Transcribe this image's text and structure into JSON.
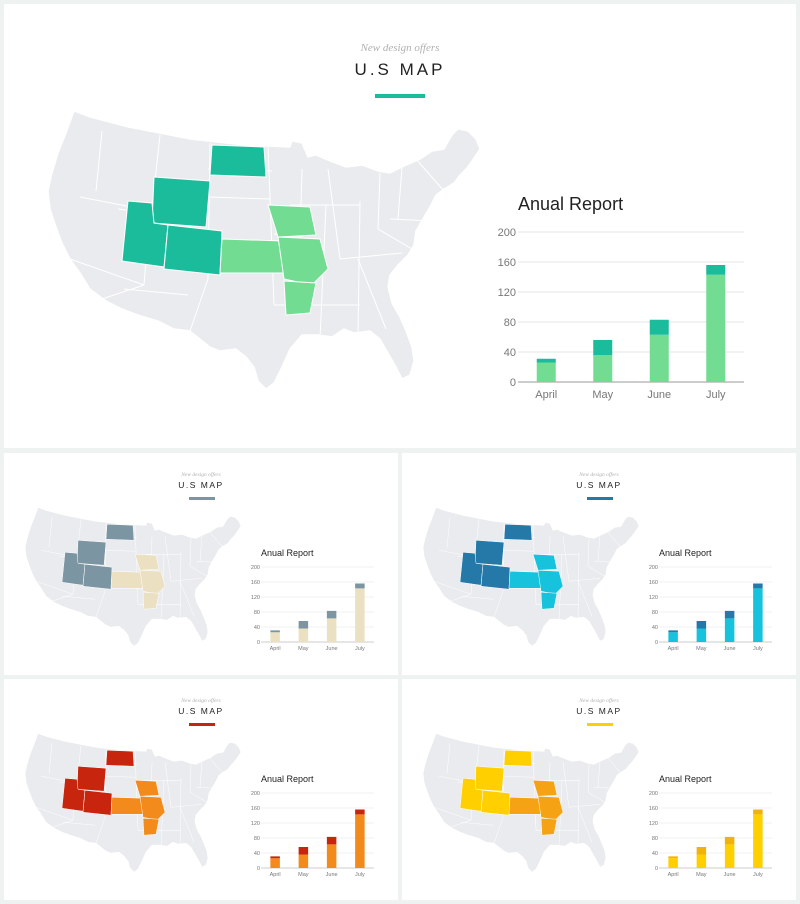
{
  "subtitle": "New design offers",
  "title": "U.S MAP",
  "chart_data": {
    "type": "bar",
    "title": "Anual Report",
    "categories": [
      "April",
      "May",
      "June",
      "July"
    ],
    "series": [
      {
        "values": [
          26,
          36,
          63,
          143
        ]
      },
      {
        "values": [
          5,
          20,
          20,
          13
        ]
      }
    ],
    "stacked": true,
    "ylim": [
      0,
      200
    ],
    "yticks": [
      0,
      40,
      80,
      120,
      160,
      200
    ],
    "grid": true
  },
  "variants": [
    {
      "id": "teal",
      "accent": "#1bbc9c",
      "series_colors": [
        "#72dd92",
        "#1bbc9c"
      ],
      "map_colors": {
        "primary": "#1bbc9c",
        "secondary": "#72dd92"
      }
    },
    {
      "id": "slate",
      "accent": "#7b95a3",
      "series_colors": [
        "#ebe0c2",
        "#7b95a3"
      ],
      "map_colors": {
        "primary": "#7b95a3",
        "secondary": "#ebe0c2"
      }
    },
    {
      "id": "blue",
      "accent": "#2479a8",
      "series_colors": [
        "#17c2dc",
        "#2479a8"
      ],
      "map_colors": {
        "primary": "#2479a8",
        "secondary": "#17c2dc"
      }
    },
    {
      "id": "red",
      "accent": "#c8250e",
      "series_colors": [
        "#f28a1c",
        "#c8250e"
      ],
      "map_colors": {
        "primary": "#c8250e",
        "secondary": "#f28a1c"
      }
    },
    {
      "id": "yellow",
      "accent": "#ffcf00",
      "series_colors": [
        "#ffcf00",
        "#f0b20c"
      ],
      "map_colors": {
        "primary": "#ffcf00",
        "secondary": "#f5a314"
      }
    }
  ]
}
